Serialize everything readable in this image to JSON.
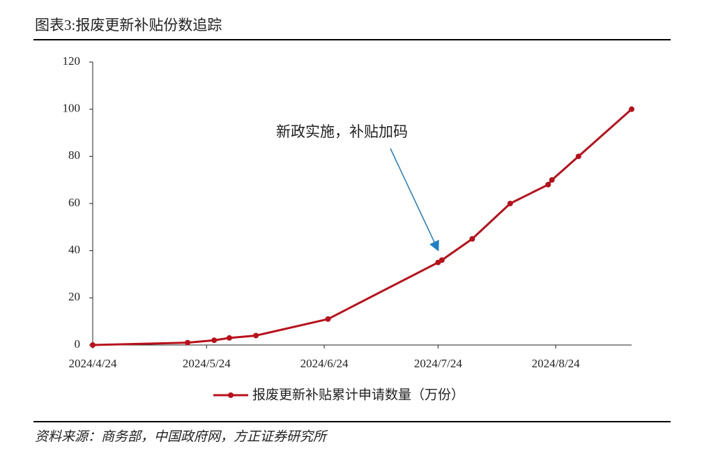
{
  "title": "图表3:报废更新补贴份数追踪",
  "source": "资料来源：商务部，中国政府网，方正证券研究所",
  "chart_data": {
    "type": "line",
    "annotation": "新政实施，补贴加码",
    "x": [
      "2024/4/24",
      "2024/5/19",
      "2024/5/26",
      "2024/5/30",
      "2024/6/6",
      "2024/6/25",
      "2024/7/24",
      "2024/7/25",
      "2024/8/2",
      "2024/8/12",
      "2024/8/22",
      "2024/8/23",
      "2024/8/30",
      "2024/9/13"
    ],
    "series": [
      {
        "name": "报废更新补贴累计申请数量（万份）",
        "color": "#b7121c",
        "values": [
          0,
          1,
          2,
          3,
          4,
          11,
          35,
          36,
          45,
          60,
          68,
          70,
          80,
          100
        ]
      }
    ],
    "xlim": [
      "2024/4/24",
      "2024/9/13"
    ],
    "xticks": [
      "2024/4/24",
      "2024/5/24",
      "2024/6/24",
      "2024/7/24",
      "2024/8/24"
    ],
    "ylim": [
      0,
      120
    ],
    "yticks": [
      0,
      20,
      40,
      60,
      80,
      100,
      120
    ]
  }
}
